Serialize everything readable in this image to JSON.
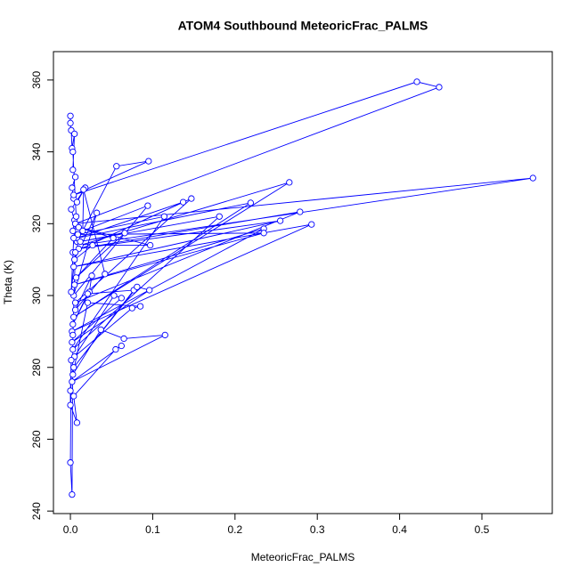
{
  "chart_data": {
    "type": "line",
    "title": "ATOM4 Southbound MeteoricFrac_PALMS",
    "xlabel": "MeteoricFrac_PALMS",
    "ylabel": "Theta (K)",
    "x": [
      0,
      0,
      0.001,
      0.002,
      0.005,
      0.003,
      0.006,
      0.002,
      0.004,
      0.008,
      0.018,
      0.001,
      0.005,
      0.003,
      0.008,
      0.056,
      0.095,
      0.004,
      0.421,
      0.448,
      0.006,
      0.562,
      0.012,
      0.266,
      0.004,
      0.219,
      0.008,
      0.137,
      0.003,
      0.147,
      0.006,
      0.279,
      0.01,
      0.255,
      0.004,
      0.293,
      0.002,
      0.235,
      0.005,
      0.235,
      0.009,
      0.114,
      0.003,
      0.181,
      0.012,
      0.066,
      0.007,
      0.052,
      0.01,
      0.097,
      0.027,
      0.005,
      0.032,
      0.004,
      0.094,
      0.015,
      0.016,
      0.042,
      0.006,
      0.026,
      0.023,
      0.003,
      0.021,
      0.077,
      0.004,
      0.081,
      0.096,
      0.002,
      0.062,
      0.053,
      0.005,
      0.075,
      0.085,
      0.021,
      0.003,
      0.037,
      0.065,
      0.115,
      0.002,
      0.062,
      0.055,
      0.004,
      0.008,
      0,
      0,
      0.001,
      0,
      0.002,
      0.003,
      0.006,
      0.001,
      0.004,
      0.007,
      0.003
    ],
    "series": [
      {
        "color": "#0000ff",
        "values": [
          350,
          348,
          346,
          341,
          345,
          335,
          333,
          330,
          327,
          326,
          330,
          324,
          321,
          318,
          315,
          336,
          337.4,
          328,
          359.5,
          358,
          320,
          332.7,
          314,
          331.5,
          294,
          325.8,
          316,
          326,
          312,
          327,
          298,
          323.3,
          313,
          320.8,
          308,
          319.8,
          290,
          318.6,
          303,
          317.4,
          317,
          322,
          285,
          322,
          315,
          317.4,
          305,
          316,
          319,
          314,
          314,
          310,
          323,
          300,
          325,
          318,
          329.5,
          306,
          296,
          305.5,
          301,
          292,
          300.5,
          301.5,
          280,
          302.4,
          301.5,
          287,
          299.3,
          300,
          283,
          296.5,
          297,
          298,
          278,
          290.5,
          288,
          289,
          276,
          286,
          285,
          272,
          264.6,
          269.5,
          273.5,
          282,
          253.5,
          244.6,
          289,
          312,
          301,
          316,
          322,
          340
        ]
      }
    ],
    "xlim": [
      -0.0206,
      0.5855
    ],
    "ylim": [
      239.3,
      367.9
    ],
    "xticks": [
      {
        "value": 0,
        "label": "0.0"
      },
      {
        "value": 0.1,
        "label": "0.1"
      },
      {
        "value": 0.2,
        "label": "0.2"
      },
      {
        "value": 0.3,
        "label": "0.3"
      },
      {
        "value": 0.4,
        "label": "0.4"
      },
      {
        "value": 0.5,
        "label": "0.5"
      }
    ],
    "yticks": [
      240,
      260,
      280,
      300,
      320,
      340,
      360
    ]
  }
}
